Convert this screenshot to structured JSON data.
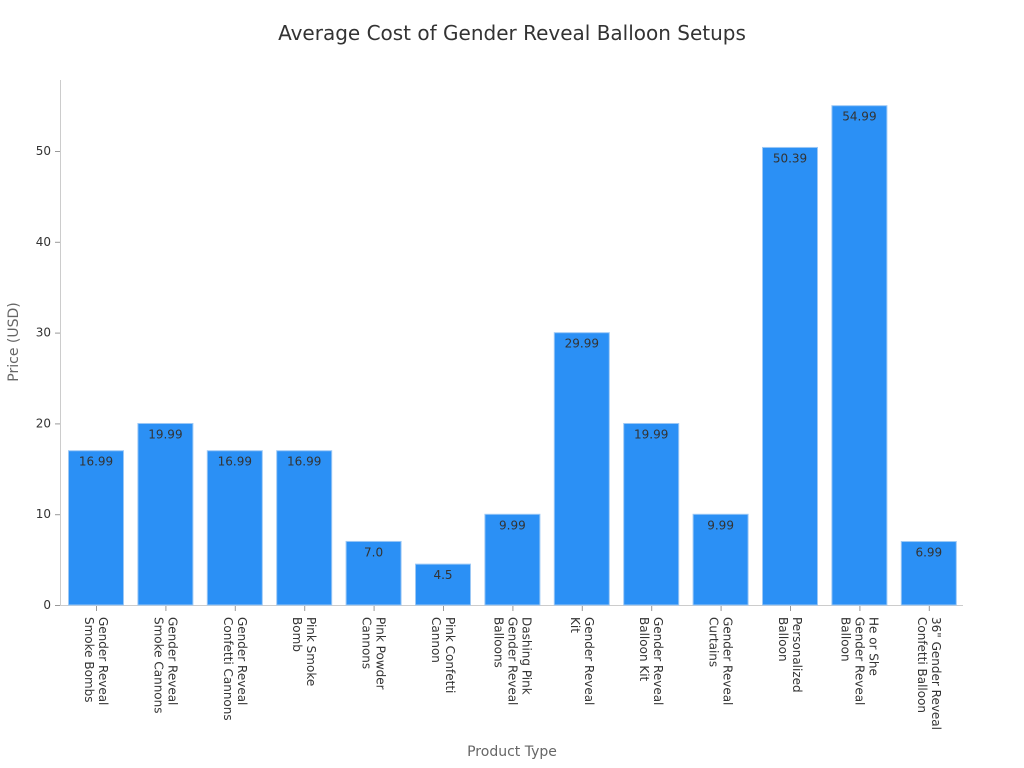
{
  "chart_data": {
    "type": "bar",
    "title": "Average Cost of Gender Reveal Balloon Setups",
    "xlabel": "Product Type",
    "ylabel": "Price (USD)",
    "ylim": [
      0,
      58
    ],
    "yticks": [
      0,
      10,
      20,
      30,
      40,
      50
    ],
    "grid": false,
    "bar_color": "#2b90f5",
    "categories": [
      "Gender Reveal\nSmoke Bombs",
      "Gender Reveal\nSmoke Cannons",
      "Gender Reveal\nConfetti Cannons",
      "Pink Smoke\nBomb",
      "Pink Powder\nCannons",
      "Pink Confetti\nCannon",
      "Dashing Pink\nGender Reveal\nBalloons",
      "Gender Reveal\nKit",
      "Gender Reveal\nBalloon Kit",
      "Gender Reveal\nCurtains",
      "Personalized\nBalloon",
      "He or She\nGender Reveal\nBalloon",
      "36\" Gender Reveal\nConfetti Balloon"
    ],
    "values": [
      16.99,
      19.99,
      16.99,
      16.99,
      7.0,
      4.5,
      9.99,
      29.99,
      19.99,
      9.99,
      50.39,
      54.99,
      6.99
    ],
    "data_labels": [
      "16.99",
      "19.99",
      "16.99",
      "16.99",
      "7.0",
      "4.5",
      "9.99",
      "29.99",
      "19.99",
      "9.99",
      "50.39",
      "54.99",
      "6.99"
    ]
  }
}
